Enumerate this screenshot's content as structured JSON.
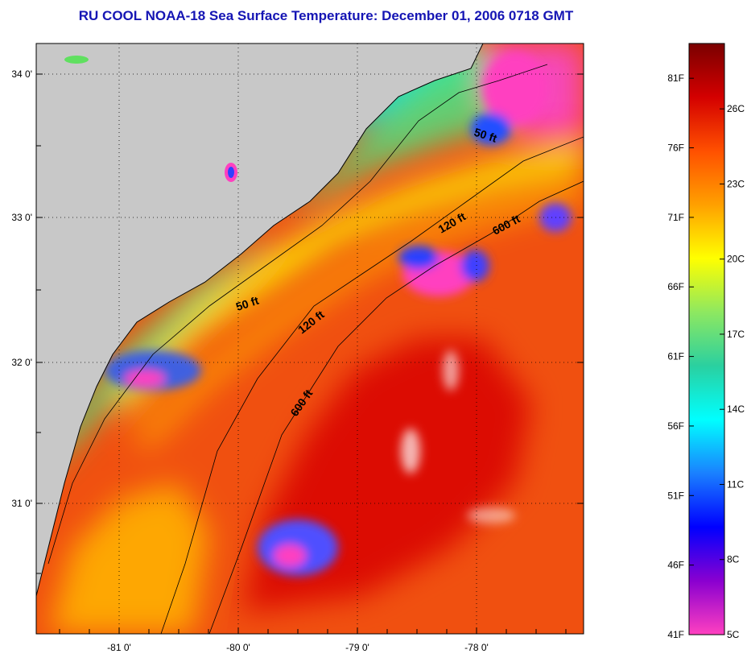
{
  "title": "RU COOL  NOAA-18  Sea Surface Temperature:  December 01, 2006 0718 GMT",
  "map": {
    "lon_ticks": [
      "-81 0'",
      "-80 0'",
      "-79 0'",
      "-78 0'"
    ],
    "lat_ticks": [
      "34 0'",
      "33 0'",
      "32 0'",
      "31 0'"
    ],
    "contours": [
      {
        "label": "50 ft"
      },
      {
        "label": "50 ft"
      },
      {
        "label": "120 ft"
      },
      {
        "label": "120 ft"
      },
      {
        "label": "600 ft"
      },
      {
        "label": "600 ft"
      }
    ]
  },
  "colorbar": {
    "fahrenheit": [
      "81F",
      "76F",
      "71F",
      "66F",
      "61F",
      "56F",
      "51F",
      "46F",
      "41F"
    ],
    "celsius": [
      "26C",
      "23C",
      "20C",
      "17C",
      "14C",
      "11C",
      "8C",
      "5C"
    ],
    "gradient_colors": [
      "#7a0000",
      "#d40000",
      "#ff5000",
      "#ffa000",
      "#ffff00",
      "#8ee860",
      "#2ad0a0",
      "#00ffff",
      "#1a80ff",
      "#0000ff",
      "#8a00d0",
      "#ff40c0"
    ]
  },
  "colors": {
    "land": "#c8c8c8",
    "title": "#1515b4"
  }
}
